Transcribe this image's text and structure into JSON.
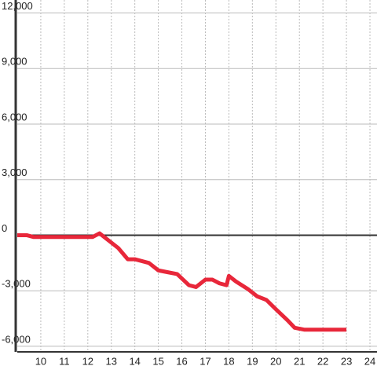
{
  "chart_data": {
    "type": "line",
    "x": [
      9.0,
      9.4,
      9.7,
      12.2,
      12.5,
      12.8,
      13.3,
      13.7,
      14.0,
      14.3,
      14.6,
      15.0,
      15.4,
      15.8,
      16.3,
      16.6,
      17.0,
      17.3,
      17.6,
      17.9,
      18.0,
      18.3,
      18.8,
      19.2,
      19.6,
      20.0,
      20.5,
      20.8,
      21.2,
      23.0
    ],
    "series": [
      {
        "color": "#e8273a",
        "values": [
          0,
          0,
          -100,
          -100,
          100,
          -200,
          -700,
          -1300,
          -1300,
          -1400,
          -1500,
          -1900,
          -2000,
          -2100,
          -2700,
          -2800,
          -2400,
          -2400,
          -2600,
          -2700,
          -2200,
          -2500,
          -2900,
          -3300,
          -3500,
          -4000,
          -4600,
          -5000,
          -5100,
          -5100
        ]
      }
    ],
    "xlim": [
      9,
      24.3
    ],
    "xticks": [
      10,
      11,
      12,
      13,
      14,
      15,
      16,
      17,
      18,
      19,
      20,
      21,
      22,
      23,
      24
    ],
    "ylim": [
      -6300,
      12700
    ],
    "yticks": [
      {
        "value": -6000,
        "label": "-6,000"
      },
      {
        "value": -3000,
        "label": "-3,000"
      },
      0,
      {
        "value": 3000,
        "label": "3,000"
      },
      {
        "value": 6000,
        "label": "6,000"
      },
      {
        "value": 9000,
        "label": "9,000"
      },
      {
        "value": 12000,
        "label": "12,000"
      }
    ],
    "grid": true
  }
}
